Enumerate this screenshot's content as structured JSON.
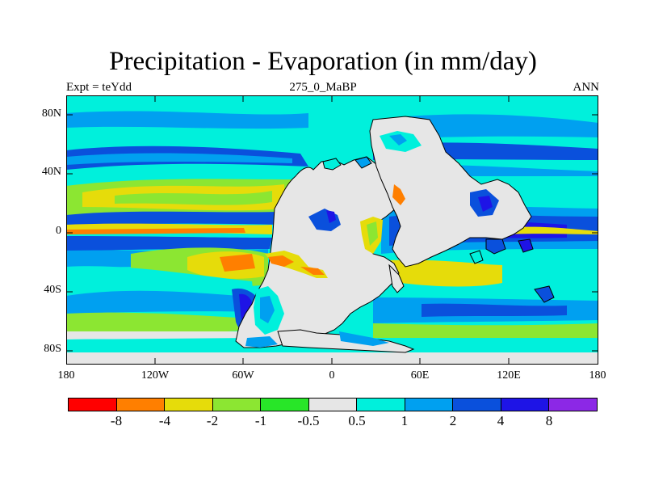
{
  "title": "Precipitation - Evaporation (in mm/day)",
  "subtitle_left": "Expt = teYdd",
  "subtitle_center": "275_0_MaBP",
  "subtitle_right": "ANN",
  "y_axis_labels": [
    "80N",
    "40N",
    "0",
    "40S",
    "80S"
  ],
  "x_axis_labels": [
    "180",
    "120W",
    "60W",
    "0",
    "60E",
    "120E",
    "180"
  ],
  "colorbar": {
    "colors": [
      "#ff0000",
      "#ff7f00",
      "#e6dc0a",
      "#8ce632",
      "#28e628",
      "#e6e6e6",
      "#00f0dc",
      "#00a0f0",
      "#0a50dc",
      "#1e14e6",
      "#8c28e6"
    ],
    "labels": [
      "-8",
      "-4",
      "-2",
      "-1",
      "-0.5",
      "0.5",
      "1",
      "2",
      "4",
      "8"
    ]
  },
  "map_colors": {
    "land": "#e6e6e6",
    "outline": "#000000"
  }
}
